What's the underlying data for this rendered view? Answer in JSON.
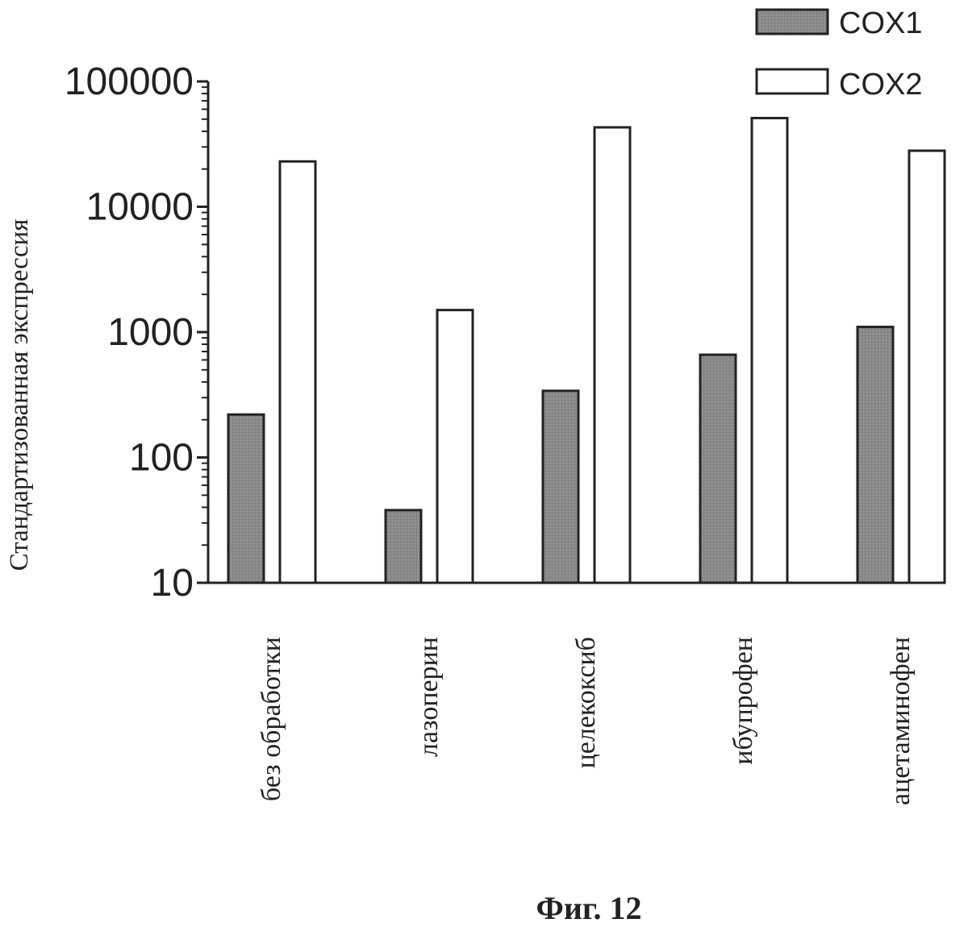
{
  "chart_data": {
    "type": "bar",
    "scale": "log",
    "ylabel": "Стандартизованная экспрессия",
    "xlabel": "",
    "ylim": [
      10,
      100000
    ],
    "yticks": [
      "10",
      "100",
      "1000",
      "10000",
      "100000"
    ],
    "yticks_values": [
      10,
      100,
      1000,
      10000,
      100000
    ],
    "categories": [
      "без обработки",
      "лазоперин",
      "целекоксиб",
      "ибупрофен",
      "ацетаминофен"
    ],
    "series": [
      {
        "name": "COX1",
        "values": [
          220,
          38,
          340,
          660,
          1100
        ],
        "color": "#8a8a8a"
      },
      {
        "name": "COX2",
        "values": [
          23000,
          1500,
          43000,
          51000,
          28000
        ],
        "color": "#ffffff"
      }
    ],
    "legend_position": "top-right",
    "caption": "Фиг. 12"
  }
}
